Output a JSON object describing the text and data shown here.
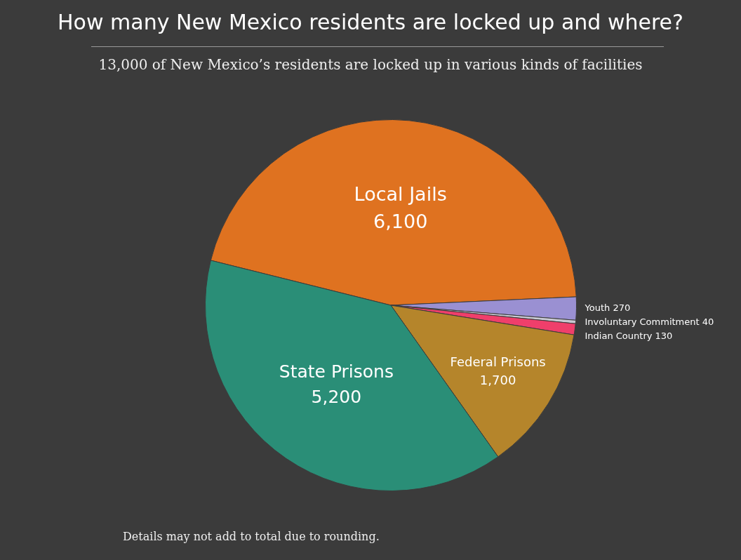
{
  "chart_data": {
    "type": "pie",
    "title": "How many New Mexico residents are locked up and where?",
    "subtitle": "13,000 of New Mexico’s residents are locked up in various kinds of facilities",
    "categories": [
      "Local Jails",
      "Youth",
      "Involuntary Commitment",
      "Indian Country",
      "Federal Prisons",
      "State Prisons"
    ],
    "values": [
      6100,
      270,
      40,
      130,
      1700,
      5200
    ],
    "colors": [
      "#df7220",
      "#9a90d2",
      "#c9c9d3",
      "#ef3f6b",
      "#b5852b",
      "#2a8e77"
    ],
    "value_labels": [
      "6,100",
      "270",
      "40",
      "130",
      "1,700",
      "5,200"
    ],
    "legend": false,
    "annotations": [
      "Details may not add to total due to rounding."
    ]
  }
}
